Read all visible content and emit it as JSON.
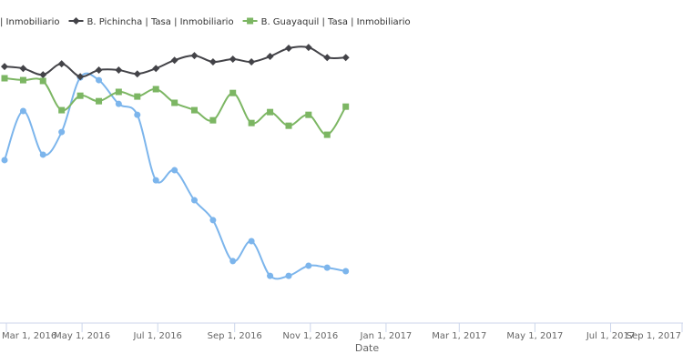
{
  "chart_data": {
    "type": "line",
    "title": "",
    "xlabel": "Date",
    "ylabel": "",
    "y_note": "no y-axis is shown; values are relative index units (0-100)",
    "ylim": [
      0,
      101.7
    ],
    "grid": false,
    "legend_position": "top-left",
    "x_ticks": [
      "Mar 1, 2016",
      "May 1, 2016",
      "Jul 1, 2016",
      "Sep 1, 2016",
      "Nov 1, 2016",
      "Jan 1, 2017",
      "Mar 1, 2017",
      "May 1, 2017",
      "Jul 1, 2017",
      "Sep 1, 2017"
    ],
    "x_tick_labels_visible": [
      "1, 2016",
      "May 1, 2016",
      "Jul 1, 2016",
      "Sep 1, 2016",
      "Nov 1, 2016",
      "Jan 1, 2017",
      "Mar 1, 2017",
      "May 1, 2017",
      "Jul 1, 2017",
      "Sep"
    ],
    "x": [
      "2016-03-01",
      "2016-03-16",
      "2016-04-01",
      "2016-04-16",
      "2016-05-01",
      "2016-05-16",
      "2016-06-01",
      "2016-06-16",
      "2016-07-01",
      "2016-07-16",
      "2016-08-01",
      "2016-08-16",
      "2016-09-01",
      "2016-09-16",
      "2016-10-01",
      "2016-10-16",
      "2016-11-01",
      "2016-11-16",
      "2016-12-01"
    ],
    "series": [
      {
        "name": "| Inmobiliario",
        "color": "#7cb5ec",
        "marker": "circle",
        "values": [
          59.7,
          77.7,
          61.7,
          70.0,
          90.0,
          89.0,
          80.3,
          76.3,
          52.3,
          56.0,
          45.0,
          37.7,
          22.7,
          30.0,
          17.3,
          17.3,
          21.0,
          20.3,
          19.0
        ]
      },
      {
        "name": "B. Pichincha | Tasa | Inmobiliario",
        "color": "#434348",
        "marker": "diamond",
        "values": [
          94.0,
          93.3,
          91.0,
          95.0,
          90.3,
          92.7,
          92.7,
          91.3,
          93.3,
          96.3,
          98.0,
          95.7,
          96.7,
          95.7,
          97.7,
          100.7,
          101.0,
          97.3,
          97.3
        ]
      },
      {
        "name": "B. Guayaquil | Tasa | Inmobiliario",
        "color": "#7cb663",
        "marker": "square",
        "values": [
          89.7,
          89.0,
          88.7,
          78.0,
          83.3,
          81.3,
          84.7,
          83.0,
          85.7,
          80.7,
          78.0,
          74.3,
          84.3,
          73.3,
          77.3,
          72.3,
          76.3,
          69.0,
          79.3
        ]
      }
    ]
  }
}
